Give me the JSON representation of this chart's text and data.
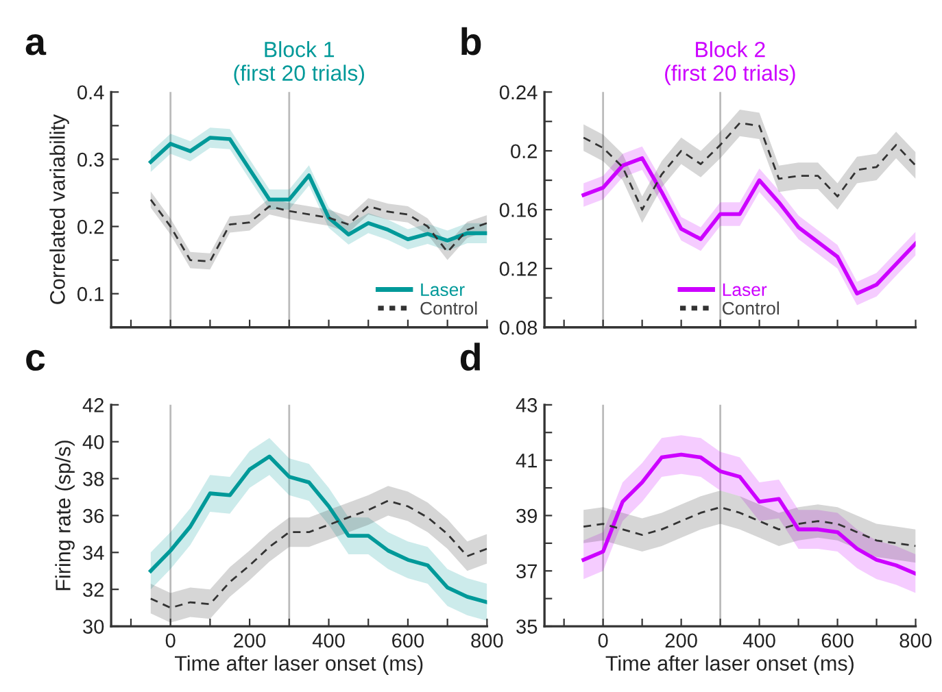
{
  "chart_data": [
    {
      "type": "line",
      "title": "Block 1\n(first 20 trials)",
      "ylabel": "Correlated variability",
      "annotations": [
        "a"
      ],
      "x": [
        -50,
        0,
        50,
        100,
        150,
        200,
        250,
        300,
        350,
        400,
        450,
        500,
        550,
        600,
        650,
        700,
        750,
        800
      ],
      "series": [
        {
          "name": "Laser",
          "color": "#009999",
          "line_style": "solid",
          "values": [
            0.296,
            0.323,
            0.312,
            0.332,
            0.33,
            0.285,
            0.24,
            0.24,
            0.276,
            0.213,
            0.188,
            0.205,
            0.195,
            0.181,
            0.189,
            0.179,
            0.19,
            0.19
          ],
          "lower": [
            0.281,
            0.308,
            0.297,
            0.317,
            0.315,
            0.27,
            0.225,
            0.225,
            0.261,
            0.198,
            0.173,
            0.19,
            0.18,
            0.166,
            0.174,
            0.164,
            0.175,
            0.175
          ],
          "upper": [
            0.311,
            0.338,
            0.327,
            0.347,
            0.345,
            0.3,
            0.255,
            0.255,
            0.291,
            0.228,
            0.203,
            0.22,
            0.21,
            0.196,
            0.204,
            0.194,
            0.205,
            0.205
          ]
        },
        {
          "name": "Control",
          "color": "#333333",
          "line_style": "dashed",
          "values": [
            0.24,
            0.2,
            0.15,
            0.148,
            0.203,
            0.206,
            0.23,
            0.223,
            0.218,
            0.213,
            0.203,
            0.23,
            0.222,
            0.218,
            0.2,
            0.162,
            0.195,
            0.205
          ],
          "lower": [
            0.228,
            0.188,
            0.138,
            0.136,
            0.191,
            0.194,
            0.218,
            0.211,
            0.206,
            0.201,
            0.191,
            0.218,
            0.21,
            0.206,
            0.188,
            0.15,
            0.183,
            0.193
          ],
          "upper": [
            0.252,
            0.212,
            0.162,
            0.16,
            0.215,
            0.218,
            0.242,
            0.235,
            0.23,
            0.225,
            0.215,
            0.242,
            0.234,
            0.23,
            0.212,
            0.174,
            0.207,
            0.217
          ]
        }
      ],
      "xlim": [
        -150,
        800
      ],
      "xticks": [
        {
          "value": -100,
          "label": null
        },
        {
          "value": 0,
          "label": null
        },
        {
          "value": 100,
          "label": null
        },
        {
          "value": 200,
          "label": null
        },
        {
          "value": 300,
          "label": null
        },
        {
          "value": 400,
          "label": null
        },
        {
          "value": 500,
          "label": null
        },
        {
          "value": 600,
          "label": null
        },
        {
          "value": 700,
          "label": null
        },
        {
          "value": 800,
          "label": null
        }
      ],
      "ylim": [
        0.05,
        0.4
      ],
      "yticks": [
        0.1,
        {
          "value": 0.15,
          "label": null
        },
        0.2,
        {
          "value": 0.25,
          "label": null
        },
        0.3,
        {
          "value": 0.35,
          "label": null
        },
        0.4
      ],
      "ref_lines": [
        {
          "axis": "x",
          "value": 0,
          "color": "#bbbbbb"
        },
        {
          "axis": "x",
          "value": 300,
          "color": "#bbbbbb"
        }
      ],
      "tick_labels": "y",
      "legend": "bottom right",
      "grid": false,
      "marker": "none"
    },
    {
      "type": "line",
      "title": "Block 2\n(first 20 trials)",
      "annotations": [
        "b"
      ],
      "x": [
        -50,
        0,
        50,
        100,
        150,
        200,
        250,
        300,
        350,
        400,
        450,
        500,
        550,
        600,
        650,
        700,
        750,
        800
      ],
      "series": [
        {
          "name": "Laser",
          "color": "#cc00ff",
          "line_style": "solid",
          "values": [
            0.17,
            0.175,
            0.19,
            0.195,
            0.172,
            0.147,
            0.14,
            0.157,
            0.157,
            0.18,
            0.165,
            0.148,
            0.138,
            0.128,
            0.103,
            0.109,
            0.123,
            0.137
          ],
          "lower": [
            0.162,
            0.167,
            0.182,
            0.187,
            0.164,
            0.139,
            0.132,
            0.149,
            0.149,
            0.172,
            0.157,
            0.14,
            0.13,
            0.12,
            0.095,
            0.101,
            0.115,
            0.129
          ],
          "upper": [
            0.178,
            0.183,
            0.198,
            0.203,
            0.18,
            0.155,
            0.148,
            0.165,
            0.165,
            0.188,
            0.173,
            0.156,
            0.146,
            0.136,
            0.111,
            0.117,
            0.131,
            0.145
          ]
        },
        {
          "name": "Control",
          "color": "#333333",
          "line_style": "dashed",
          "values": [
            0.209,
            0.202,
            0.189,
            0.16,
            0.184,
            0.2,
            0.191,
            0.204,
            0.219,
            0.217,
            0.181,
            0.183,
            0.183,
            0.169,
            0.187,
            0.189,
            0.204,
            0.19
          ],
          "lower": [
            0.2,
            0.193,
            0.18,
            0.151,
            0.175,
            0.191,
            0.182,
            0.195,
            0.21,
            0.208,
            0.172,
            0.174,
            0.174,
            0.16,
            0.178,
            0.18,
            0.195,
            0.181
          ],
          "upper": [
            0.218,
            0.211,
            0.198,
            0.169,
            0.193,
            0.209,
            0.2,
            0.213,
            0.228,
            0.226,
            0.19,
            0.192,
            0.192,
            0.178,
            0.196,
            0.198,
            0.213,
            0.199
          ]
        }
      ],
      "xlim": [
        -150,
        800
      ],
      "xticks": [
        {
          "value": -100,
          "label": null
        },
        {
          "value": 0,
          "label": null
        },
        {
          "value": 100,
          "label": null
        },
        {
          "value": 200,
          "label": null
        },
        {
          "value": 300,
          "label": null
        },
        {
          "value": 400,
          "label": null
        },
        {
          "value": 500,
          "label": null
        },
        {
          "value": 600,
          "label": null
        },
        {
          "value": 700,
          "label": null
        },
        {
          "value": 800,
          "label": null
        }
      ],
      "ylim": [
        0.08,
        0.24
      ],
      "yticks": [
        0.08,
        {
          "value": 0.1,
          "label": null
        },
        0.12,
        {
          "value": 0.14,
          "label": null
        },
        0.16,
        {
          "value": 0.18,
          "label": null
        },
        0.2,
        {
          "value": 0.22,
          "label": null
        },
        0.24
      ],
      "ref_lines": [
        {
          "axis": "x",
          "value": 0,
          "color": "#bbbbbb"
        },
        {
          "axis": "x",
          "value": 300,
          "color": "#bbbbbb"
        }
      ],
      "tick_labels": "y",
      "legend": "bottom",
      "grid": false,
      "marker": "none"
    },
    {
      "type": "line",
      "xlabel": "Time after laser onset (ms)",
      "ylabel": "Firing rate (sp/s)",
      "annotations": [
        "c"
      ],
      "x": [
        -50,
        0,
        50,
        100,
        150,
        200,
        250,
        300,
        350,
        400,
        450,
        500,
        550,
        600,
        650,
        700,
        750,
        800
      ],
      "series": [
        {
          "color": "#009999",
          "line_style": "solid",
          "values": [
            33.0,
            34.1,
            35.4,
            37.2,
            37.1,
            38.5,
            39.2,
            38.1,
            37.8,
            36.5,
            34.9,
            34.9,
            34.1,
            33.6,
            33.3,
            32.1,
            31.6,
            31.3
          ],
          "lower": [
            32.0,
            33.1,
            34.4,
            36.2,
            36.1,
            37.5,
            38.2,
            37.1,
            36.8,
            35.5,
            33.9,
            33.9,
            33.1,
            32.6,
            32.3,
            31.1,
            30.6,
            30.3
          ],
          "upper": [
            34.0,
            35.1,
            36.4,
            38.2,
            38.1,
            39.5,
            40.2,
            39.1,
            38.8,
            37.5,
            35.9,
            35.9,
            35.1,
            34.6,
            34.3,
            33.1,
            32.6,
            32.3
          ]
        },
        {
          "color": "#333333",
          "line_style": "dashed",
          "values": [
            31.5,
            31.0,
            31.3,
            31.2,
            32.4,
            33.3,
            34.3,
            35.1,
            35.1,
            35.5,
            35.9,
            36.3,
            36.8,
            36.5,
            35.9,
            35.0,
            33.8,
            34.2
          ],
          "lower": [
            30.7,
            30.2,
            30.5,
            30.4,
            31.6,
            32.5,
            33.5,
            34.3,
            34.3,
            34.7,
            35.1,
            35.5,
            36.0,
            35.7,
            35.1,
            34.2,
            33.0,
            33.4
          ],
          "upper": [
            32.3,
            31.8,
            32.1,
            32.0,
            33.2,
            34.1,
            35.1,
            35.9,
            35.9,
            36.3,
            36.7,
            37.1,
            37.6,
            37.3,
            36.7,
            35.8,
            34.6,
            35.0
          ]
        }
      ],
      "xlim": [
        -150,
        800
      ],
      "xticks": [
        {
          "value": -100,
          "label": null
        },
        0,
        {
          "value": 100,
          "label": null
        },
        200,
        {
          "value": 300,
          "label": null
        },
        400,
        {
          "value": 500,
          "label": null
        },
        600,
        {
          "value": 700,
          "label": null
        },
        800
      ],
      "ylim": [
        30,
        42
      ],
      "yticks": [
        30,
        32,
        34,
        36,
        38,
        40,
        42
      ],
      "ref_lines": [
        {
          "axis": "x",
          "value": 0,
          "color": "#bbbbbb"
        },
        {
          "axis": "x",
          "value": 300,
          "color": "#bbbbbb"
        }
      ],
      "legend": false,
      "grid": false,
      "marker": "none"
    },
    {
      "type": "line",
      "xlabel": "Time after laser onset (ms)",
      "annotations": [
        "d"
      ],
      "x": [
        -50,
        0,
        50,
        100,
        150,
        200,
        250,
        300,
        350,
        400,
        450,
        500,
        550,
        600,
        650,
        700,
        750,
        800
      ],
      "series": [
        {
          "color": "#cc00ff",
          "line_style": "solid",
          "values": [
            37.4,
            37.7,
            39.5,
            40.2,
            41.1,
            41.2,
            41.1,
            40.6,
            40.4,
            39.5,
            39.6,
            38.5,
            38.5,
            38.4,
            37.8,
            37.4,
            37.2,
            36.9
          ],
          "lower": [
            36.7,
            37.0,
            38.8,
            39.5,
            40.4,
            40.5,
            40.4,
            39.9,
            39.7,
            38.8,
            38.9,
            37.8,
            37.8,
            37.7,
            37.1,
            36.7,
            36.5,
            36.2
          ],
          "upper": [
            38.1,
            38.4,
            40.2,
            40.9,
            41.8,
            41.9,
            41.8,
            41.3,
            41.1,
            40.2,
            40.3,
            39.2,
            39.2,
            39.1,
            38.5,
            38.1,
            37.9,
            37.6
          ]
        },
        {
          "color": "#333333",
          "line_style": "dashed",
          "values": [
            38.6,
            38.7,
            38.5,
            38.3,
            38.5,
            38.8,
            39.1,
            39.3,
            39.1,
            38.8,
            38.5,
            38.7,
            38.8,
            38.7,
            38.4,
            38.1,
            38.0,
            37.9
          ],
          "lower": [
            38.0,
            38.1,
            37.9,
            37.7,
            37.9,
            38.2,
            38.5,
            38.7,
            38.5,
            38.2,
            37.9,
            38.1,
            38.2,
            38.1,
            37.8,
            37.5,
            37.4,
            37.3
          ],
          "upper": [
            39.2,
            39.3,
            39.1,
            38.9,
            39.1,
            39.4,
            39.7,
            39.9,
            39.7,
            39.4,
            39.1,
            39.3,
            39.4,
            39.3,
            39.0,
            38.7,
            38.6,
            38.5
          ]
        }
      ],
      "xlim": [
        -150,
        800
      ],
      "xticks": [
        {
          "value": -100,
          "label": null
        },
        0,
        {
          "value": 100,
          "label": null
        },
        200,
        {
          "value": 300,
          "label": null
        },
        400,
        {
          "value": 500,
          "label": null
        },
        600,
        {
          "value": 700,
          "label": null
        },
        800
      ],
      "ylim": [
        35,
        43
      ],
      "yticks": [
        35,
        {
          "value": 36,
          "label": null
        },
        37,
        {
          "value": 38,
          "label": null
        },
        39,
        {
          "value": 40,
          "label": null
        },
        41,
        {
          "value": 42,
          "label": null
        },
        43
      ],
      "ref_lines": [
        {
          "axis": "x",
          "value": 0,
          "color": "#bbbbbb"
        },
        {
          "axis": "x",
          "value": 300,
          "color": "#bbbbbb"
        }
      ],
      "legend": false,
      "grid": false,
      "marker": "none"
    }
  ]
}
